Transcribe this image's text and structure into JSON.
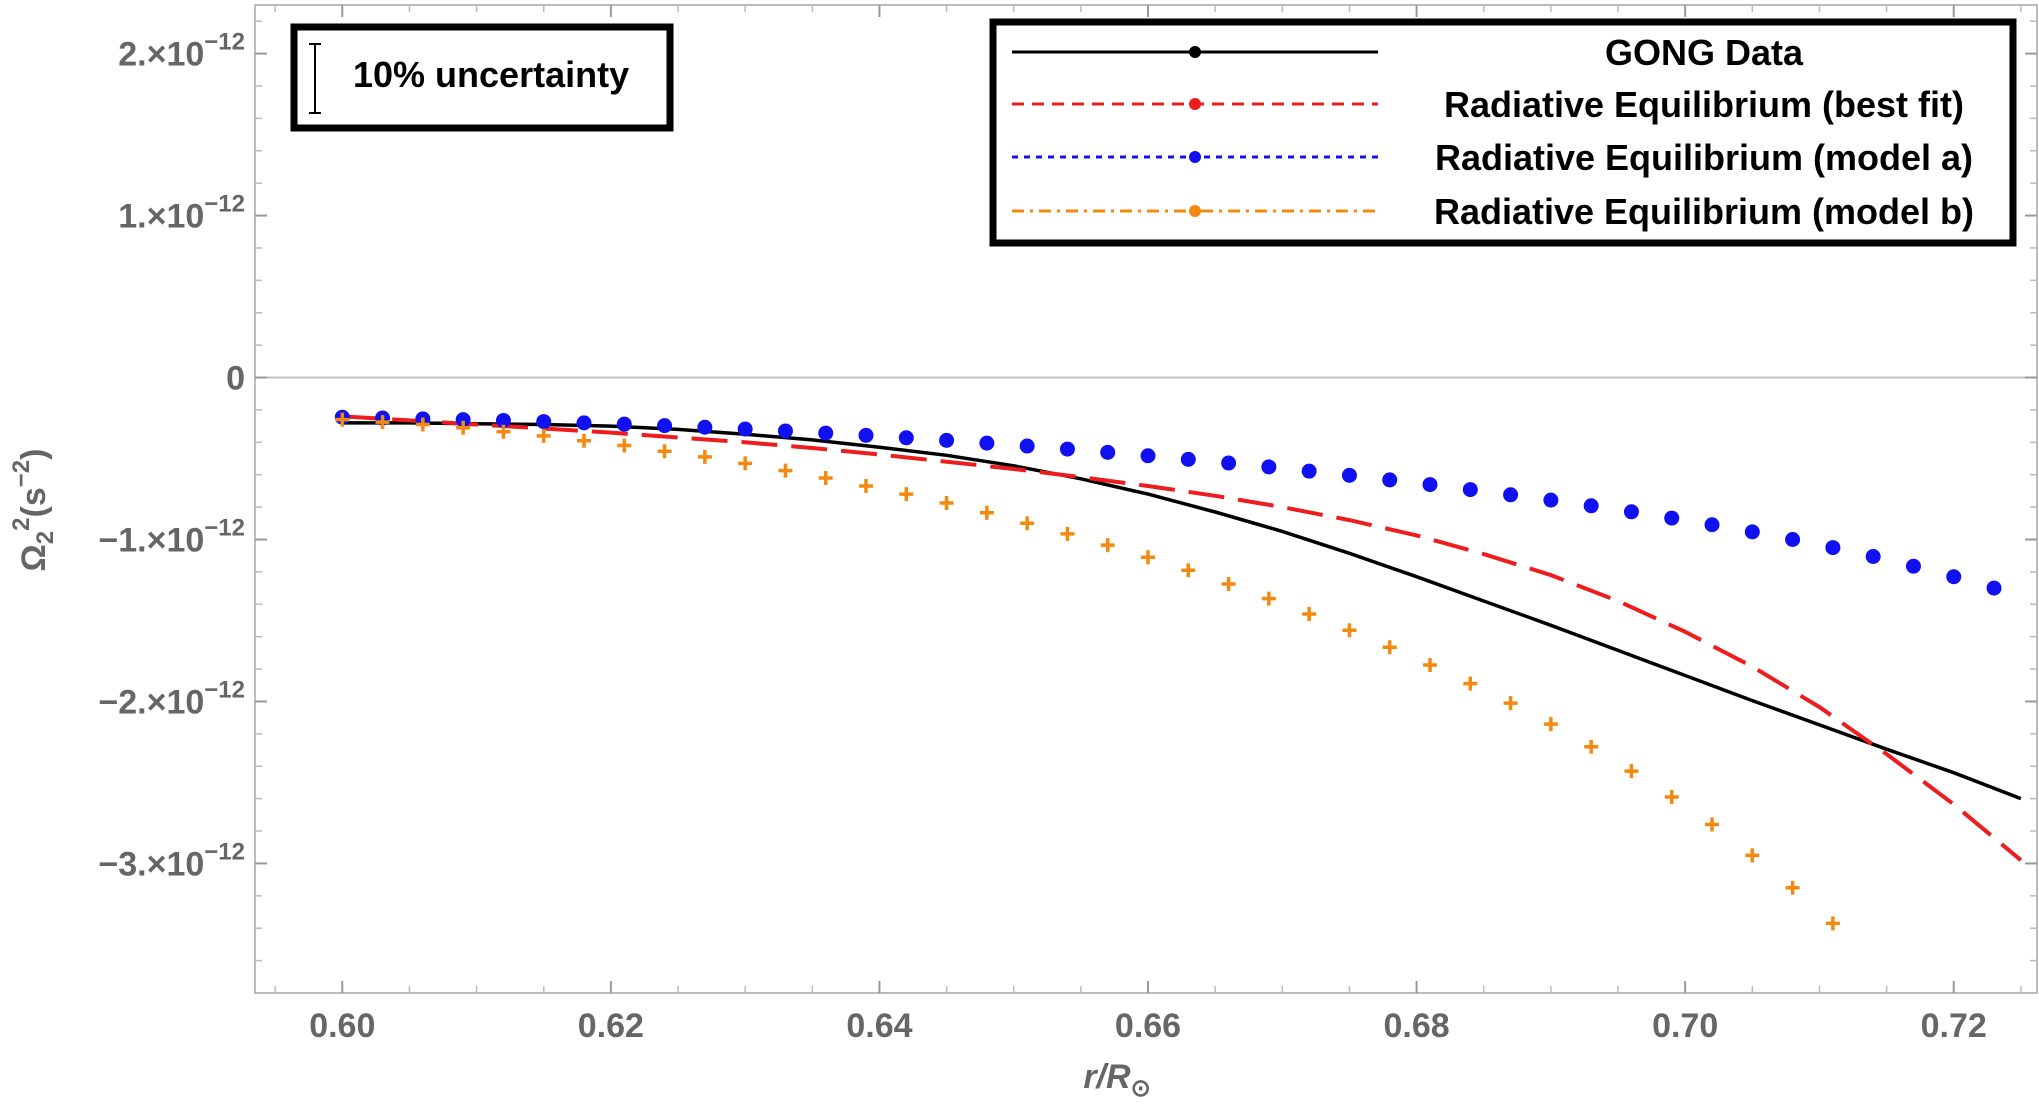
{
  "chart_data": {
    "type": "line",
    "xlabel_main": "r/R",
    "xlabel_sub": "⊙",
    "ylabel_main": "Ω",
    "ylabel_sub": "2",
    "ylabel_sup": "2",
    "ylabel_unit_open": "(s",
    "ylabel_unit_sup": "−2",
    "ylabel_unit_close": ")",
    "xlim": [
      0.5935,
      0.7262
    ],
    "ylim": [
      -3.8e-12,
      2.3e-12
    ],
    "x_ticks": [
      "0.60",
      "0.62",
      "0.64",
      "0.66",
      "0.68",
      "0.70",
      "0.72"
    ],
    "x_tick_values": [
      0.6,
      0.62,
      0.64,
      0.66,
      0.68,
      0.7,
      0.72
    ],
    "y_ticks": [
      {
        "value": 2e-12,
        "mantissa": "2.",
        "times": "×",
        "base": "10",
        "exp": "−12"
      },
      {
        "value": 1e-12,
        "mantissa": "1.",
        "times": "×",
        "base": "10",
        "exp": "−12"
      },
      {
        "value": 0,
        "mantissa": "0",
        "times": "",
        "base": "",
        "exp": ""
      },
      {
        "value": -1e-12,
        "mantissa": "−1.",
        "times": "×",
        "base": "10",
        "exp": "−12"
      },
      {
        "value": -2e-12,
        "mantissa": "−2.",
        "times": "×",
        "base": "10",
        "exp": "−12"
      },
      {
        "value": -3e-12,
        "mantissa": "−3.",
        "times": "×",
        "base": "10",
        "exp": "−12"
      }
    ],
    "minor_y_ticks": [
      2.2e-12,
      1.8e-12,
      1.6e-12,
      1.4e-12,
      1.2e-12,
      8e-13,
      6e-13,
      4e-13,
      2e-13,
      -2e-13,
      -4e-13,
      -6e-13,
      -8e-13,
      -1.2e-12,
      -1.4e-12,
      -1.6e-12,
      -1.8e-12,
      -2.2e-12,
      -2.4e-12,
      -2.6e-12,
      -2.8e-12,
      -3.2e-12,
      -3.4e-12,
      -3.6e-12
    ],
    "minor_x_ticks": [
      0.595,
      0.605,
      0.61,
      0.615,
      0.625,
      0.63,
      0.635,
      0.645,
      0.65,
      0.655,
      0.665,
      0.67,
      0.675,
      0.685,
      0.69,
      0.695,
      0.705,
      0.71,
      0.715,
      0.725
    ],
    "zero_line": true,
    "uncertainty_legend": "10% uncertainty",
    "series": [
      {
        "name": "GONG Data",
        "color": "#000000",
        "style": "solid",
        "legend_marker": "dot",
        "x": [
          0.6,
          0.605,
          0.61,
          0.615,
          0.62,
          0.625,
          0.63,
          0.635,
          0.64,
          0.645,
          0.65,
          0.655,
          0.66,
          0.665,
          0.67,
          0.675,
          0.68,
          0.685,
          0.69,
          0.695,
          0.7,
          0.705,
          0.71,
          0.715,
          0.72,
          0.725
        ],
        "y": [
          -2.8e-13,
          -2.8e-13,
          -2.85e-13,
          -2.9e-13,
          -3e-13,
          -3.2e-13,
          -3.5e-13,
          -3.85e-13,
          -4.3e-13,
          -4.8e-13,
          -5.45e-13,
          -6.25e-13,
          -7.2e-13,
          -8.3e-13,
          -9.5e-13,
          -1.085e-12,
          -1.23e-12,
          -1.38e-12,
          -1.53e-12,
          -1.685e-12,
          -1.84e-12,
          -1.995e-12,
          -2.145e-12,
          -2.295e-12,
          -2.44e-12,
          -2.6e-12
        ]
      },
      {
        "name": "Radiative Equilibrium (best fit)",
        "color": "#ee1c1c",
        "style": "dashed",
        "legend_marker": "dot",
        "x": [
          0.6,
          0.605,
          0.61,
          0.615,
          0.62,
          0.625,
          0.63,
          0.635,
          0.64,
          0.645,
          0.65,
          0.655,
          0.66,
          0.665,
          0.67,
          0.675,
          0.68,
          0.685,
          0.69,
          0.695,
          0.7,
          0.705,
          0.71,
          0.715,
          0.72,
          0.725
        ],
        "y": [
          -2.4e-13,
          -2.65e-13,
          -2.9e-13,
          -3.15e-13,
          -3.4e-13,
          -3.7e-13,
          -4e-13,
          -4.35e-13,
          -4.75e-13,
          -5.2e-13,
          -5.65e-13,
          -6.15e-13,
          -6.7e-13,
          -7.3e-13,
          -8e-13,
          -8.8e-13,
          -9.75e-13,
          -1.09e-12,
          -1.22e-12,
          -1.38e-12,
          -1.57e-12,
          -1.785e-12,
          -2.035e-12,
          -2.325e-12,
          -2.635e-12,
          -2.98e-12
        ]
      },
      {
        "name": "Radiative Equilibrium (model a)",
        "color": "#1010f0",
        "style": "dots",
        "legend_marker": "dot",
        "x": [
          0.6,
          0.603,
          0.606,
          0.609,
          0.612,
          0.615,
          0.618,
          0.621,
          0.624,
          0.627,
          0.63,
          0.633,
          0.636,
          0.639,
          0.642,
          0.645,
          0.648,
          0.651,
          0.654,
          0.657,
          0.66,
          0.663,
          0.666,
          0.669,
          0.672,
          0.675,
          0.678,
          0.681,
          0.684,
          0.687,
          0.69,
          0.693,
          0.696,
          0.699,
          0.702,
          0.705,
          0.708,
          0.711,
          0.714,
          0.717,
          0.72,
          0.723
        ],
        "y": [
          -2.45e-13,
          -2.5e-13,
          -2.55e-13,
          -2.6e-13,
          -2.65e-13,
          -2.72e-13,
          -2.8e-13,
          -2.88e-13,
          -2.97e-13,
          -3.07e-13,
          -3.18e-13,
          -3.3e-13,
          -3.43e-13,
          -3.57e-13,
          -3.72e-13,
          -3.88e-13,
          -4.05e-13,
          -4.23e-13,
          -4.42e-13,
          -4.62e-13,
          -4.83e-13,
          -5.05e-13,
          -5.28e-13,
          -5.52e-13,
          -5.78e-13,
          -6.04e-13,
          -6.32e-13,
          -6.61e-13,
          -6.92e-13,
          -7.24e-13,
          -7.57e-13,
          -7.92e-13,
          -8.29e-13,
          -8.68e-13,
          -9.09e-13,
          -9.53e-13,
          -1e-12,
          -1.05e-12,
          -1.105e-12,
          -1.165e-12,
          -1.23e-12,
          -1.3e-12
        ]
      },
      {
        "name": "Radiative Equilibrium (model b)",
        "color": "#f28a10",
        "style": "plus",
        "legend_marker": "dot",
        "x": [
          0.6,
          0.603,
          0.606,
          0.609,
          0.612,
          0.615,
          0.618,
          0.621,
          0.624,
          0.627,
          0.63,
          0.633,
          0.636,
          0.639,
          0.642,
          0.645,
          0.648,
          0.651,
          0.654,
          0.657,
          0.66,
          0.663,
          0.666,
          0.669,
          0.672,
          0.675,
          0.678,
          0.681,
          0.684,
          0.687,
          0.69,
          0.693,
          0.696,
          0.699,
          0.702,
          0.705,
          0.708,
          0.711
        ],
        "y": [
          -2.6e-13,
          -2.75e-13,
          -2.9e-13,
          -3.1e-13,
          -3.35e-13,
          -3.6e-13,
          -3.9e-13,
          -4.2e-13,
          -4.55e-13,
          -4.9e-13,
          -5.3e-13,
          -5.75e-13,
          -6.2e-13,
          -6.7e-13,
          -7.2e-13,
          -7.75e-13,
          -8.35e-13,
          -9e-13,
          -9.65e-13,
          -1.035e-12,
          -1.11e-12,
          -1.19e-12,
          -1.275e-12,
          -1.365e-12,
          -1.46e-12,
          -1.56e-12,
          -1.665e-12,
          -1.775e-12,
          -1.89e-12,
          -2.01e-12,
          -2.14e-12,
          -2.28e-12,
          -2.43e-12,
          -2.59e-12,
          -2.76e-12,
          -2.95e-12,
          -3.15e-12,
          -3.37e-12
        ]
      }
    ]
  }
}
